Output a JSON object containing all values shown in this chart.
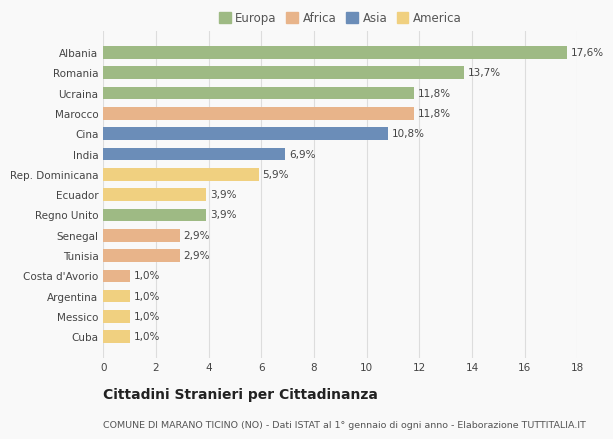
{
  "categories": [
    "Albania",
    "Romania",
    "Ucraina",
    "Marocco",
    "Cina",
    "India",
    "Rep. Dominicana",
    "Ecuador",
    "Regno Unito",
    "Senegal",
    "Tunisia",
    "Costa d'Avorio",
    "Argentina",
    "Messico",
    "Cuba"
  ],
  "values": [
    17.6,
    13.7,
    11.8,
    11.8,
    10.8,
    6.9,
    5.9,
    3.9,
    3.9,
    2.9,
    2.9,
    1.0,
    1.0,
    1.0,
    1.0
  ],
  "labels": [
    "17,6%",
    "13,7%",
    "11,8%",
    "11,8%",
    "10,8%",
    "6,9%",
    "5,9%",
    "3,9%",
    "3,9%",
    "2,9%",
    "2,9%",
    "1,0%",
    "1,0%",
    "1,0%",
    "1,0%"
  ],
  "continent": [
    "Europa",
    "Europa",
    "Europa",
    "Africa",
    "Asia",
    "Asia",
    "America",
    "America",
    "Europa",
    "Africa",
    "Africa",
    "Africa",
    "America",
    "America",
    "America"
  ],
  "colors": {
    "Europa": "#9eba84",
    "Africa": "#e8b48a",
    "Asia": "#6b8db8",
    "America": "#f0d080"
  },
  "legend_order": [
    "Europa",
    "Africa",
    "Asia",
    "America"
  ],
  "legend_colors": [
    "#9eba84",
    "#e8b48a",
    "#6b8db8",
    "#f0d080"
  ],
  "xlim": [
    0,
    18
  ],
  "xticks": [
    0,
    2,
    4,
    6,
    8,
    10,
    12,
    14,
    16,
    18
  ],
  "title": "Cittadini Stranieri per Cittadinanza",
  "subtitle": "COMUNE DI MARANO TICINO (NO) - Dati ISTAT al 1° gennaio di ogni anno - Elaborazione TUTTITALIA.IT",
  "background_color": "#f9f9f9",
  "bar_height": 0.62,
  "grid_color": "#dddddd",
  "label_fontsize": 7.5,
  "tick_fontsize": 7.5,
  "title_fontsize": 10,
  "subtitle_fontsize": 6.8,
  "legend_fontsize": 8.5
}
